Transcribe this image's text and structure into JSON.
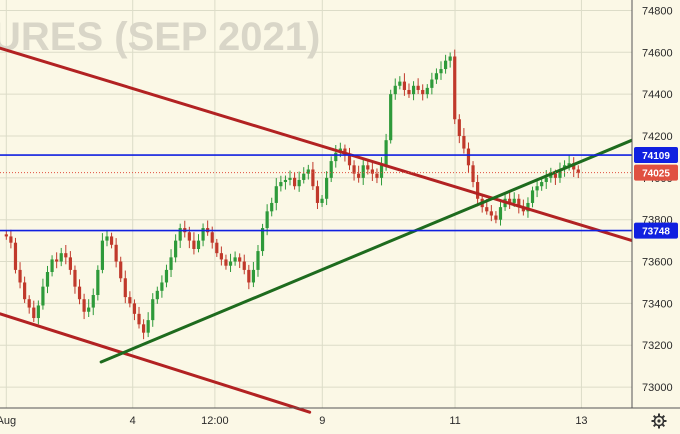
{
  "window": {
    "watermark": "URES (SEP 2021)"
  },
  "colors": {
    "background": "#fbf8e6",
    "grid": "#dcdcc8",
    "up": "#2e9a3a",
    "down": "#c0392b",
    "level": "#1020e0",
    "resistance_trend": "#b22222",
    "support_trend": "#1e6b1e",
    "price_label": "#e05040"
  },
  "icons": {
    "settings": "gear-icon"
  },
  "chart_data": {
    "type": "candlestick",
    "title": "URES (SEP 2021)",
    "x_ticks": [
      "Aug",
      "4",
      "12:00",
      "9",
      "11",
      "13"
    ],
    "y_ticks": [
      73000,
      73200,
      73400,
      73600,
      73800,
      74000,
      74200,
      74400,
      74600,
      74800
    ],
    "ylim": [
      72900,
      74850
    ],
    "grid": true,
    "horizontal_levels": [
      {
        "name": "upper-level",
        "value": 74109,
        "label": "74109"
      },
      {
        "name": "lower-level",
        "value": 73748,
        "label": "73748"
      }
    ],
    "last_price": {
      "value": 74025,
      "label": "74025"
    },
    "close_series": [
      73720,
      73690,
      73560,
      73500,
      73420,
      73380,
      73330,
      73390,
      73480,
      73550,
      73610,
      73600,
      73640,
      73620,
      73560,
      73480,
      73420,
      73360,
      73380,
      73440,
      73560,
      73700,
      73720,
      73680,
      73600,
      73520,
      73430,
      73400,
      73350,
      73300,
      73260,
      73320,
      73420,
      73460,
      73500,
      73560,
      73620,
      73700,
      73760,
      73740,
      73700,
      73660,
      73700,
      73760,
      73740,
      73690,
      73640,
      73610,
      73580,
      73600,
      73620,
      73600,
      73560,
      73500,
      73560,
      73650,
      73760,
      73840,
      73880,
      73960,
      73980,
      73990,
      74000,
      73960,
      73990,
      74020,
      74040,
      73960,
      73880,
      73900,
      74000,
      74080,
      74120,
      74140,
      74110,
      74060,
      74020,
      74000,
      74060,
      74040,
      74020,
      74000,
      74060,
      74180,
      74400,
      74440,
      74460,
      74420,
      74400,
      74440,
      74420,
      74400,
      74430,
      74470,
      74500,
      74520,
      74560,
      74580,
      74280,
      74200,
      74140,
      74060,
      73980,
      73900,
      73860,
      73840,
      73820,
      73800,
      73860,
      73900,
      73880,
      73900,
      73860,
      73840,
      73880,
      73940,
      73960,
      73980,
      74000,
      74020,
      74000,
      74040,
      74060,
      74070,
      74040,
      74025
    ],
    "trendlines": [
      {
        "name": "upper-resistance",
        "start": {
          "t": 0,
          "value": 74620
        },
        "end": {
          "t": 1,
          "value": 73700
        }
      },
      {
        "name": "lower-resistance",
        "start": {
          "t": 0,
          "value": 73350
        },
        "end": {
          "t": 0.49,
          "value": 72880
        }
      },
      {
        "name": "support",
        "start": {
          "t": 0.16,
          "value": 73120
        },
        "end": {
          "t": 1,
          "value": 74180
        }
      }
    ]
  }
}
